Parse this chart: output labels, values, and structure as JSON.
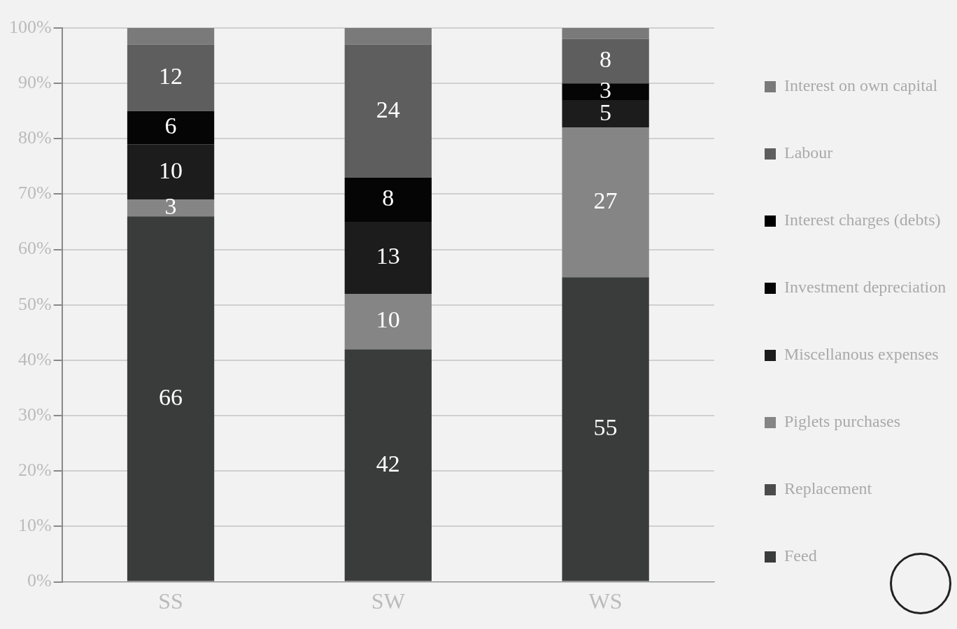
{
  "chart_data": {
    "type": "bar",
    "stacked": true,
    "categories": [
      "SS",
      "SW",
      "WS"
    ],
    "series": [
      {
        "name": "Feed",
        "color": "#3a3b3b",
        "values": [
          66,
          42,
          55
        ],
        "value_labels": [
          "66",
          "42",
          "55"
        ]
      },
      {
        "name": "Replacement",
        "color": "#4b4b4b",
        "values": [
          0,
          0,
          0
        ],
        "value_labels": [
          null,
          null,
          null
        ]
      },
      {
        "name": "Piglets purchases",
        "color": "#858585",
        "values": [
          3,
          10,
          27
        ],
        "value_labels": [
          "3",
          "10",
          "27"
        ]
      },
      {
        "name": "Miscellanous expenses",
        "color": "#1c1c1c",
        "values": [
          10,
          13,
          5
        ],
        "value_labels": [
          "10",
          "13",
          "5"
        ]
      },
      {
        "name": "Investment depreciation",
        "color": "#050505",
        "values": [
          6,
          8,
          3
        ],
        "value_labels": [
          "6",
          "8",
          "3"
        ]
      },
      {
        "name": "Interest charges (debts)",
        "color": "#000000",
        "values": [
          0,
          0,
          0
        ],
        "value_labels": [
          null,
          null,
          null
        ]
      },
      {
        "name": "Labour",
        "color": "#5e5e5e",
        "values": [
          12,
          24,
          8
        ],
        "value_labels": [
          "12",
          "24",
          "8"
        ]
      },
      {
        "name": "Interest on own capital",
        "color": "#7a7a7a",
        "values": [
          3,
          3,
          2
        ],
        "value_labels": [
          null,
          null,
          null
        ]
      }
    ],
    "ylim": [
      0,
      100
    ],
    "yticks": [
      {
        "value": 0,
        "label": "0%"
      },
      {
        "value": 10,
        "label": "10%"
      },
      {
        "value": 20,
        "label": "20%"
      },
      {
        "value": 30,
        "label": "30%"
      },
      {
        "value": 40,
        "label": "40%"
      },
      {
        "value": 50,
        "label": "50%"
      },
      {
        "value": 60,
        "label": "60%"
      },
      {
        "value": 70,
        "label": "70%"
      },
      {
        "value": 80,
        "label": "80%"
      },
      {
        "value": 90,
        "label": "90%"
      },
      {
        "value": 100,
        "label": "100%"
      }
    ],
    "grid": "y",
    "legend": "right"
  }
}
